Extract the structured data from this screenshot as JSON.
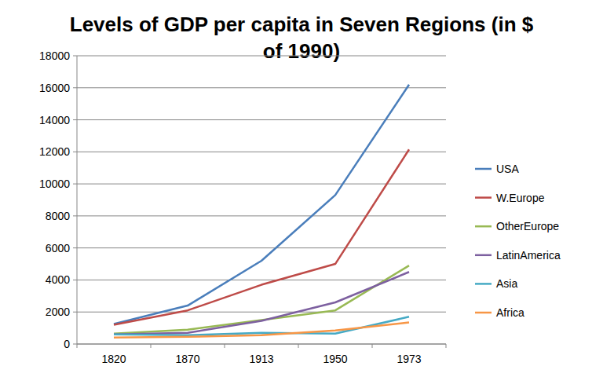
{
  "chart_data": {
    "type": "line",
    "title": "Levels of GDP per capita in Seven Regions (in $ of  1990)",
    "categories": [
      "1820",
      "1870",
      "1913",
      "1950",
      "1973"
    ],
    "series": [
      {
        "name": "USA",
        "color": "#4a7ebb",
        "values": [
          1250,
          2400,
          5200,
          9300,
          16200
        ]
      },
      {
        "name": "W.Europe",
        "color": "#be4b48",
        "values": [
          1200,
          2100,
          3700,
          5000,
          12150
        ]
      },
      {
        "name": "OtherEurope",
        "color": "#98b954",
        "values": [
          650,
          900,
          1500,
          2100,
          4900
        ]
      },
      {
        "name": "LatinAmerica",
        "color": "#7d60a0",
        "values": [
          600,
          700,
          1450,
          2600,
          4500
        ]
      },
      {
        "name": "Asia",
        "color": "#46aac5",
        "values": [
          600,
          550,
          700,
          650,
          1700
        ]
      },
      {
        "name": "Africa",
        "color": "#f79646",
        "values": [
          400,
          450,
          550,
          850,
          1350
        ]
      }
    ],
    "ylim": [
      0,
      18000
    ],
    "yticks": [
      0,
      2000,
      4000,
      6000,
      8000,
      10000,
      12000,
      14000,
      16000,
      18000
    ],
    "grid": true,
    "legend": "right"
  }
}
